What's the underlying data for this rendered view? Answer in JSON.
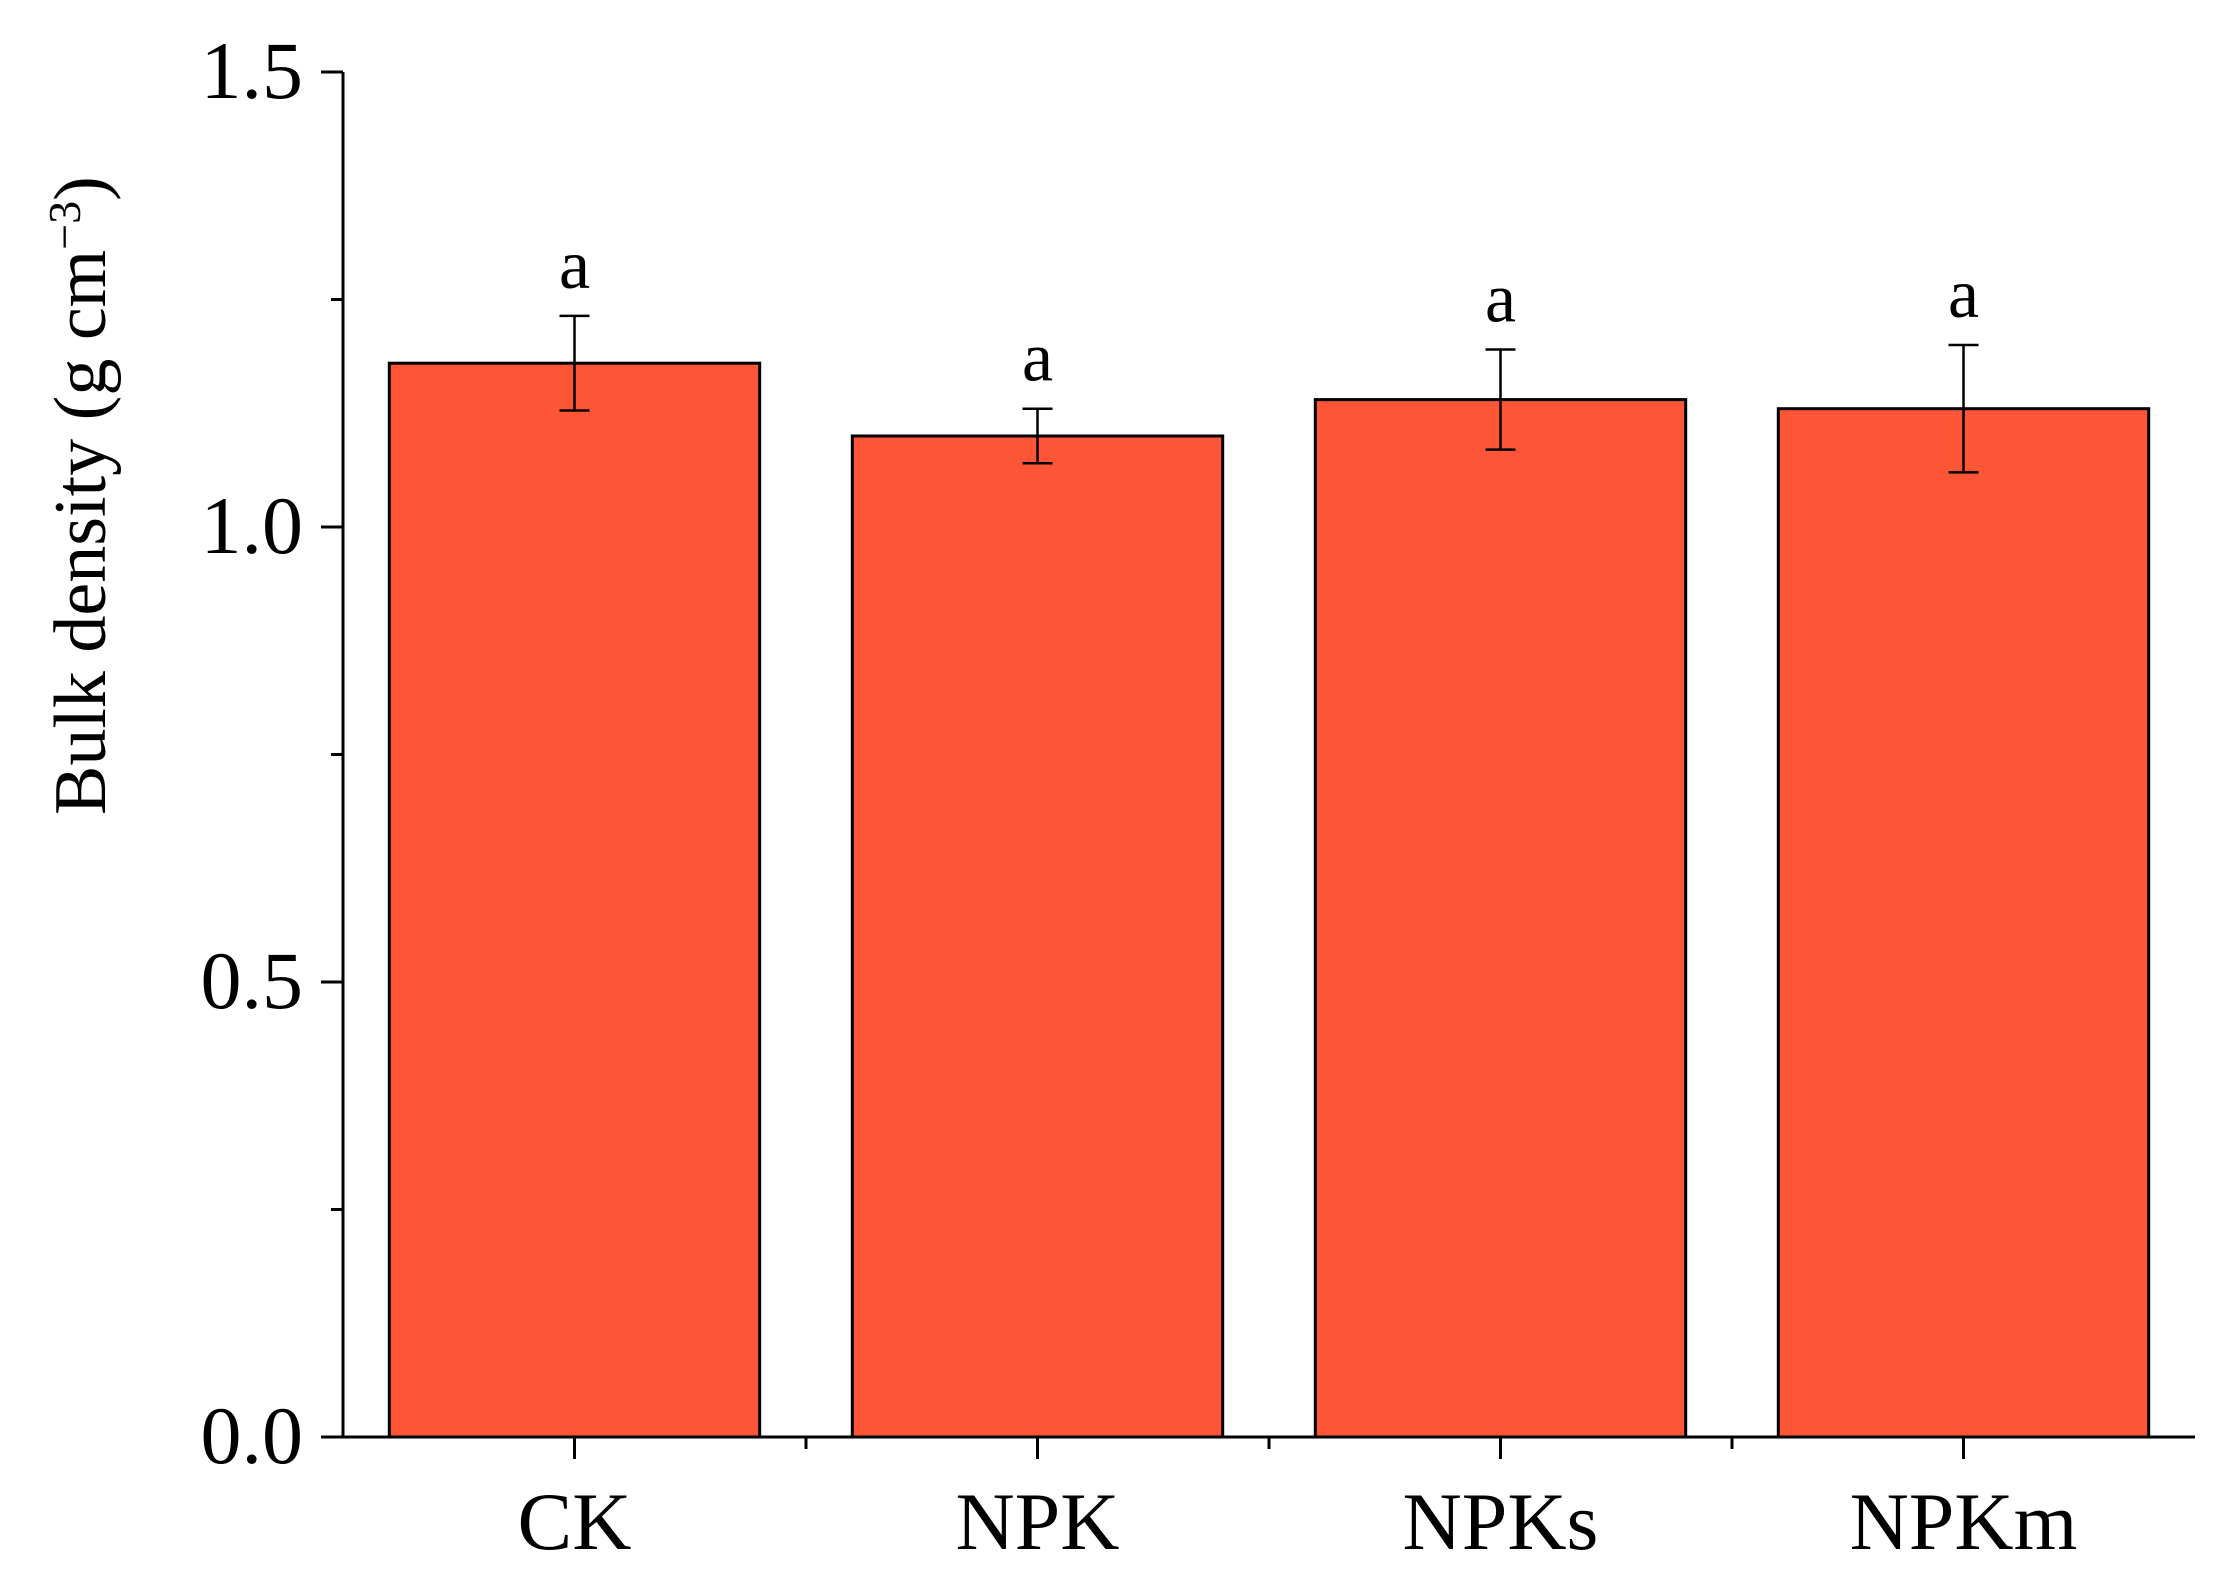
{
  "chart_data": {
    "type": "bar",
    "categories": [
      "CK",
      "NPK",
      "NPKs",
      "NPKm"
    ],
    "series": [
      {
        "values": [
          1.18,
          1.1,
          1.14,
          1.13
        ],
        "errors": [
          0.052,
          0.03,
          0.055,
          0.07
        ],
        "significance": [
          "a",
          "a",
          "a",
          "a"
        ],
        "color": "#FF5537"
      }
    ],
    "title": "",
    "xlabel": "",
    "ylabel": "Bulk density (g cm",
    "ylabel_superscript": "−3",
    "ylabel_close": ")",
    "ylim": [
      0,
      1.5
    ],
    "yticks": [
      "0.0",
      "0.5",
      "1.0",
      "1.5"
    ],
    "yminor": [
      0.25,
      0.75,
      1.25
    ],
    "grid": false,
    "legend": "none"
  }
}
